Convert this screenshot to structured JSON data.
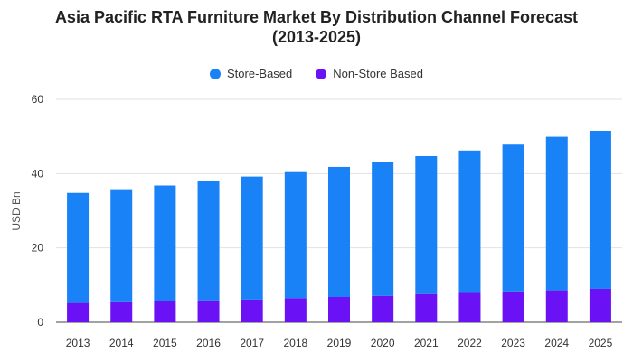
{
  "chart_data": {
    "type": "bar",
    "stacked": true,
    "title": "Asia Pacific RTA Furniture Market By Distribution Channel Forecast",
    "subtitle": "(2013-2025)",
    "xlabel": "",
    "ylabel": "USD Bn",
    "ylim": [
      0,
      60
    ],
    "yticks": [
      0,
      20,
      40,
      60
    ],
    "grid": true,
    "legend_position": "top-center",
    "categories": [
      "2013",
      "2014",
      "2015",
      "2016",
      "2017",
      "2018",
      "2019",
      "2020",
      "2021",
      "2022",
      "2023",
      "2024",
      "2025"
    ],
    "series": [
      {
        "name": "Non-Store Based",
        "color": "#6a11f5",
        "values": [
          5.2,
          5.4,
          5.6,
          5.9,
          6.1,
          6.5,
          6.8,
          7.1,
          7.6,
          7.9,
          8.3,
          8.6,
          9.0
        ]
      },
      {
        "name": "Store-Based",
        "color": "#1a82f7",
        "values": [
          29.6,
          30.4,
          31.2,
          32.0,
          33.1,
          33.9,
          35.0,
          35.9,
          37.1,
          38.3,
          39.5,
          41.3,
          42.5
        ]
      }
    ]
  }
}
